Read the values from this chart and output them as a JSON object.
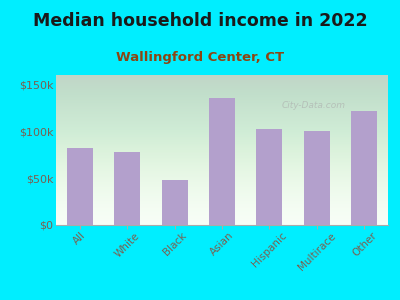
{
  "title": "Median household income in 2022",
  "subtitle": "Wallingford Center, CT",
  "categories": [
    "All",
    "White",
    "Black",
    "Asian",
    "Hispanic",
    "Multirace",
    "Other"
  ],
  "values": [
    82000,
    78000,
    48000,
    135000,
    102000,
    100000,
    122000
  ],
  "bar_color": "#b3a0cc",
  "background_outer": "#00eeff",
  "title_color": "#1a1a1a",
  "subtitle_color": "#8b4513",
  "tick_label_color": "#7a6050",
  "ytick_label_color": "#7a6050",
  "ylim": [
    0,
    160000
  ],
  "yticks": [
    0,
    50000,
    100000,
    150000
  ],
  "ytick_labels": [
    "$0",
    "$50k",
    "$100k",
    "$150k"
  ],
  "title_fontsize": 12.5,
  "subtitle_fontsize": 9.5,
  "watermark": "City-Data.com"
}
